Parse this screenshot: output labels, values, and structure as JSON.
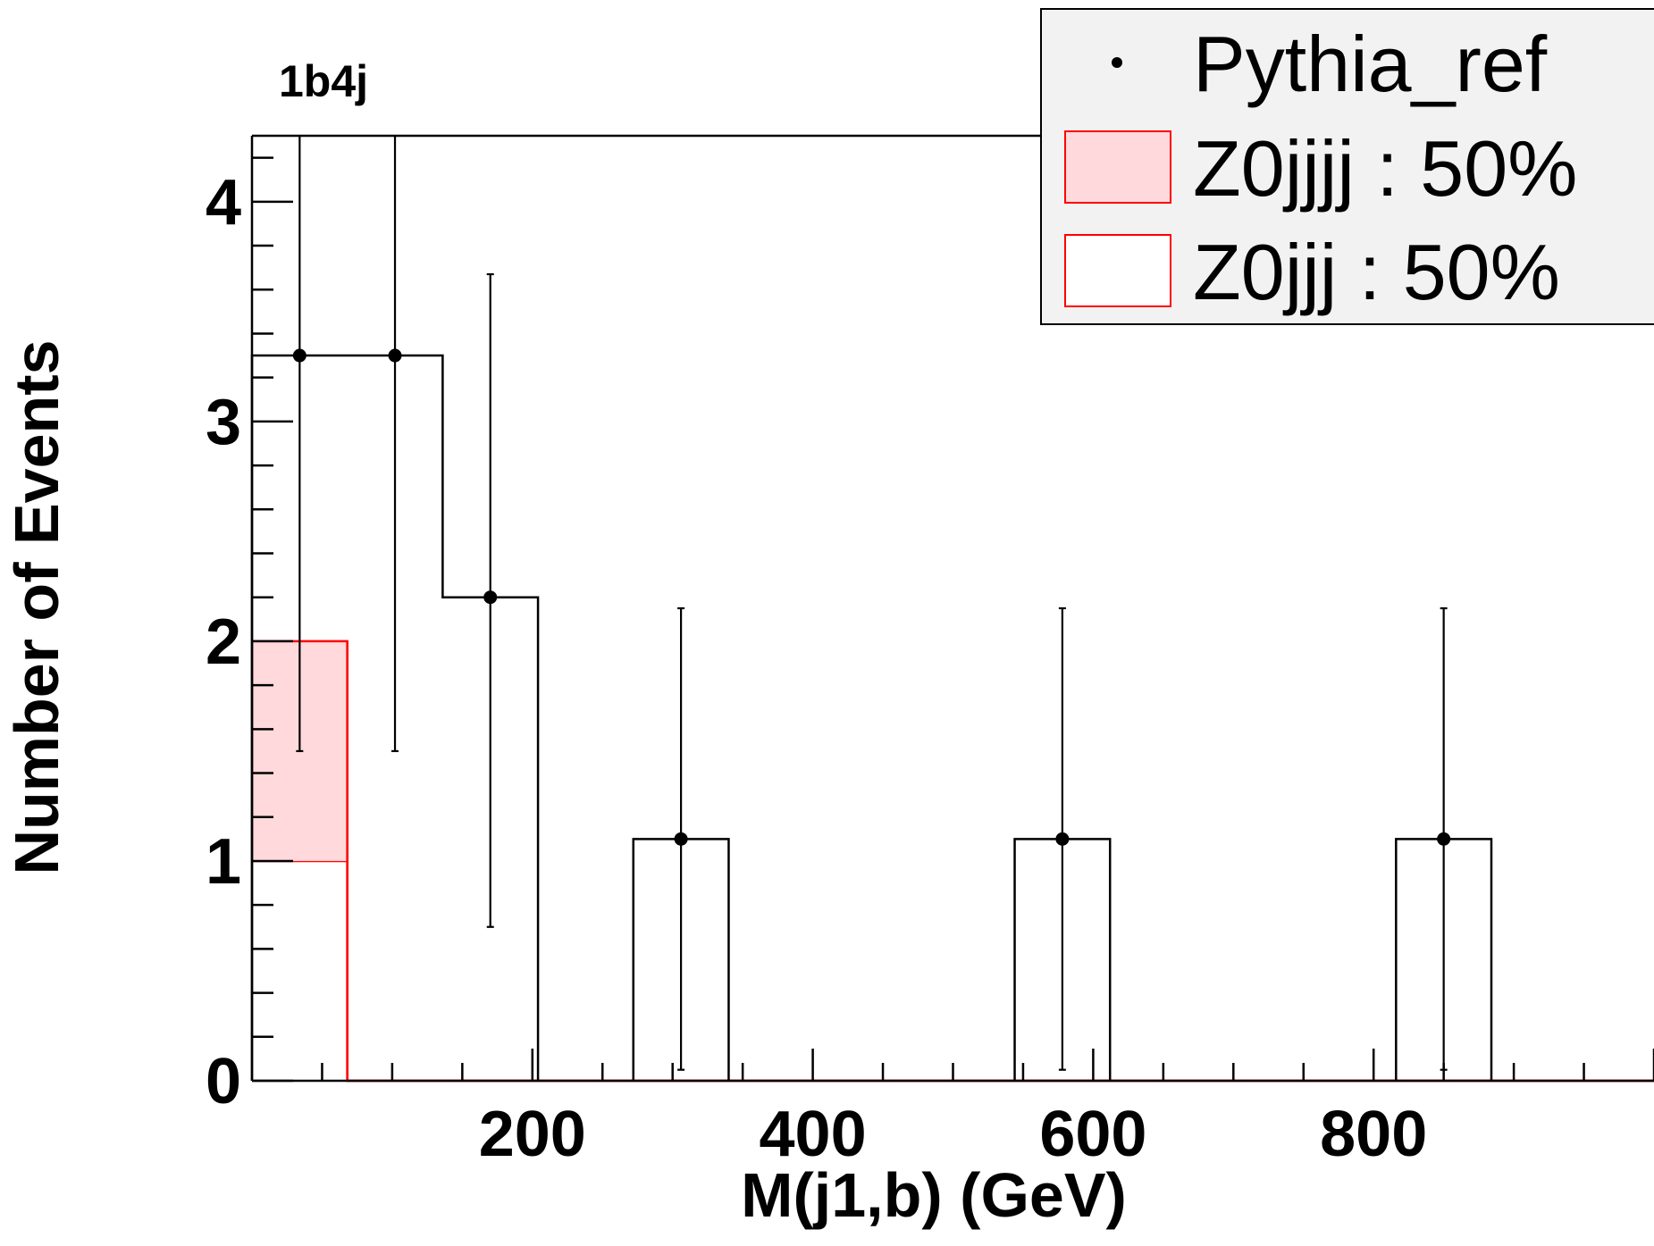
{
  "chart_data": {
    "type": "bar",
    "title": "1b4j",
    "xlabel": "M(j1,b) (GeV)",
    "ylabel": "Number of Events",
    "xlim": [
      0,
      1000
    ],
    "ylim": [
      0,
      4.3
    ],
    "x_ticks": [
      200,
      400,
      600,
      800
    ],
    "y_ticks": [
      0,
      1,
      2,
      3,
      4
    ],
    "bin_width": 68,
    "grid": false,
    "legend_position": "top-right",
    "stack": {
      "bin_edges": [
        0,
        68,
        1000
      ],
      "series": [
        {
          "name": "Z0jjj : 50%",
          "values": [
            1.0,
            0.0
          ],
          "fill": "#ffffff",
          "stroke": "#ff0000"
        },
        {
          "name": "Z0jjjj : 50%",
          "values": [
            1.0,
            0.0
          ],
          "fill": "#ffd9db",
          "stroke": "#ff0000"
        }
      ]
    },
    "reference": {
      "name": "Pythia_ref",
      "hist_bins": [
        {
          "x0": 0,
          "x1": 68,
          "y": 3.3
        },
        {
          "x0": 68,
          "x1": 136,
          "y": 3.3
        },
        {
          "x0": 136,
          "x1": 204,
          "y": 2.2
        },
        {
          "x0": 272,
          "x1": 340,
          "y": 1.1
        },
        {
          "x0": 544,
          "x1": 612,
          "y": 1.1
        },
        {
          "x0": 816,
          "x1": 884,
          "y": 1.1
        }
      ],
      "points": [
        {
          "x": 34,
          "y": 3.3,
          "ylow": 1.5,
          "yhigh": 4.3
        },
        {
          "x": 102,
          "y": 3.3,
          "ylow": 1.5,
          "yhigh": 4.3
        },
        {
          "x": 170,
          "y": 2.2,
          "ylow": 0.7,
          "yhigh": 3.67
        },
        {
          "x": 306,
          "y": 1.1,
          "ylow": 0.05,
          "yhigh": 2.15
        },
        {
          "x": 578,
          "y": 1.1,
          "ylow": 0.05,
          "yhigh": 2.15
        },
        {
          "x": 850,
          "y": 1.1,
          "ylow": 0.05,
          "yhigh": 2.15
        }
      ]
    },
    "legend": [
      {
        "label": "Pythia_ref",
        "marker": "point"
      },
      {
        "label": "Z0jjjj : 50%",
        "marker": "box",
        "fill": "#ffd9db",
        "stroke": "#ff0000"
      },
      {
        "label": "Z0jjj : 50%",
        "marker": "box",
        "fill": "#ffffff",
        "stroke": "#ff0000"
      }
    ],
    "colors": {
      "legend_bg": "#f2f2f2",
      "stack_line": "#ff0000",
      "reference": "#000000"
    }
  }
}
